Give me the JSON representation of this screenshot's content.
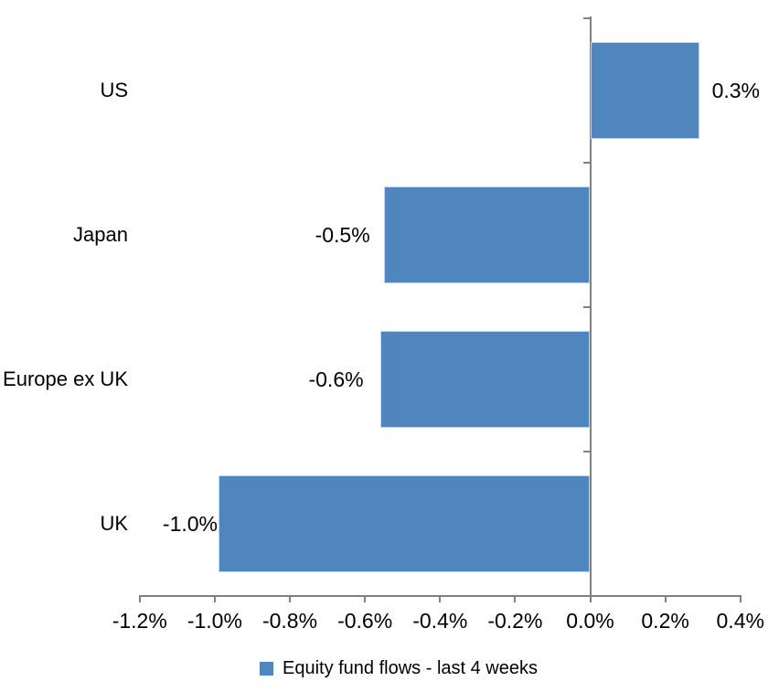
{
  "chart_data": {
    "type": "bar",
    "orientation": "horizontal",
    "title": "",
    "categories": [
      "US",
      "Japan",
      "Europe ex UK",
      "UK"
    ],
    "values": [
      0.3,
      -0.5,
      -0.6,
      -1.0
    ],
    "value_unit": "%",
    "points": [
      {
        "category": "US",
        "value": 0.3,
        "label": "0.3%",
        "bar_value": 0.29
      },
      {
        "category": "Japan",
        "value": -0.5,
        "label": "-0.5%",
        "bar_value": -0.55
      },
      {
        "category": "Europe ex UK",
        "value": -0.6,
        "label": "-0.6%",
        "bar_value": -0.56
      },
      {
        "category": "UK",
        "value": -1.0,
        "label": "-1.0%",
        "bar_value": -0.99
      }
    ],
    "legend_label": "Equity fund flows - last 4 weeks",
    "legend_position": "bottom",
    "xlim": [
      -1.2,
      0.4
    ],
    "x_ticks": [
      -1.2,
      -1.0,
      -0.8,
      -0.6,
      -0.4,
      -0.2,
      0.0,
      0.2,
      0.4
    ],
    "x_tick_labels": [
      "-1.2%",
      "-1.0%",
      "-0.8%",
      "-0.6%",
      "-0.4%",
      "-0.2%",
      "0.0%",
      "0.2%",
      "0.4%"
    ],
    "grid": false,
    "data_labels": "outside-end",
    "colors": {
      "bar_fill": "#4e86bd",
      "bar_border": "#c5d7ef",
      "axis": "#808080",
      "text": "#000000",
      "background": "#ffffff"
    }
  }
}
